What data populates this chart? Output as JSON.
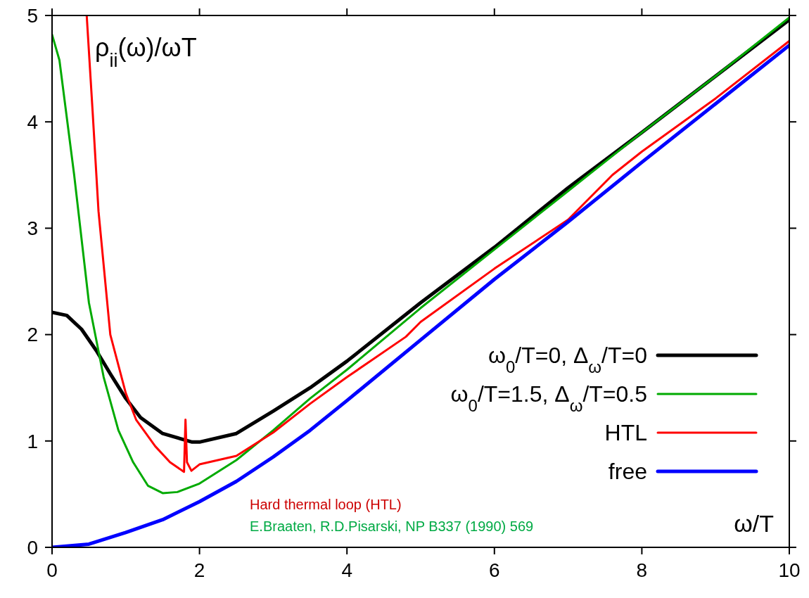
{
  "chart_data": {
    "type": "line",
    "ylabel": "ρ$_{ii}$(ω)/ωT",
    "xlabel": "ω/T",
    "xlim": [
      0,
      10
    ],
    "ylim": [
      0,
      5
    ],
    "xticks": [
      0,
      2,
      4,
      6,
      8,
      10
    ],
    "yticks": [
      0,
      1,
      2,
      3,
      4,
      5
    ],
    "grid": false,
    "legend": "right",
    "line_style": "solid",
    "marker": "none",
    "annotations": [
      "Hard thermal loop (HTL)",
      "E.Braaten, R.D.Pisarski, NP B337 (1990) 569"
    ],
    "series": [
      {
        "name": "ω$_{0}$/T=0, Δ$_{ω}$/T=0",
        "color": "#000000",
        "x": [
          0,
          0.2,
          0.4,
          0.6,
          0.8,
          1.0,
          1.2,
          1.5,
          1.9,
          2.0,
          2.5,
          3,
          3.5,
          4,
          5,
          6,
          7,
          8,
          9,
          10
        ],
        "values": [
          2.21,
          2.18,
          2.05,
          1.85,
          1.62,
          1.4,
          1.22,
          1.07,
          0.99,
          0.99,
          1.07,
          1.28,
          1.5,
          1.75,
          2.3,
          2.82,
          3.38,
          3.9,
          4.43,
          4.96
        ]
      },
      {
        "name": "ω$_{0}$/T=1.5, Δ$_{ω}$/T=0.5",
        "color": "#00aa00",
        "x": [
          0,
          0.1,
          0.3,
          0.5,
          0.7,
          0.9,
          1.1,
          1.3,
          1.5,
          1.7,
          2,
          2.5,
          3,
          3.5,
          4,
          5,
          6,
          7,
          8,
          9,
          10
        ],
        "values": [
          4.82,
          4.58,
          3.5,
          2.3,
          1.6,
          1.1,
          0.8,
          0.58,
          0.51,
          0.52,
          0.6,
          0.82,
          1.1,
          1.4,
          1.67,
          2.25,
          2.8,
          3.35,
          3.9,
          4.43,
          4.98
        ]
      },
      {
        "name": "HTL",
        "color": "#ff0000",
        "x": [
          0.47,
          0.55,
          0.63,
          0.79,
          1.0,
          1.14,
          1.4,
          1.6,
          1.79,
          1.81,
          1.83,
          1.89,
          2.0,
          2.5,
          3,
          3.5,
          4,
          4.8,
          5,
          6,
          7,
          7.6,
          8,
          9,
          10
        ],
        "values": [
          5,
          4.1,
          3.16,
          2.0,
          1.45,
          1.2,
          0.95,
          0.8,
          0.71,
          1.2,
          0.8,
          0.72,
          0.78,
          0.86,
          1.08,
          1.35,
          1.6,
          1.98,
          2.12,
          2.62,
          3.08,
          3.5,
          3.72,
          4.22,
          4.76
        ]
      },
      {
        "name": "free",
        "color": "#0000ff",
        "x": [
          0,
          0.5,
          1,
          1.5,
          2,
          2.5,
          3,
          3.5,
          4,
          5,
          6,
          7,
          8,
          9,
          10
        ],
        "values": [
          0,
          0.03,
          0.14,
          0.26,
          0.43,
          0.62,
          0.85,
          1.1,
          1.38,
          1.95,
          2.52,
          3.06,
          3.62,
          4.17,
          4.72
        ]
      }
    ]
  }
}
